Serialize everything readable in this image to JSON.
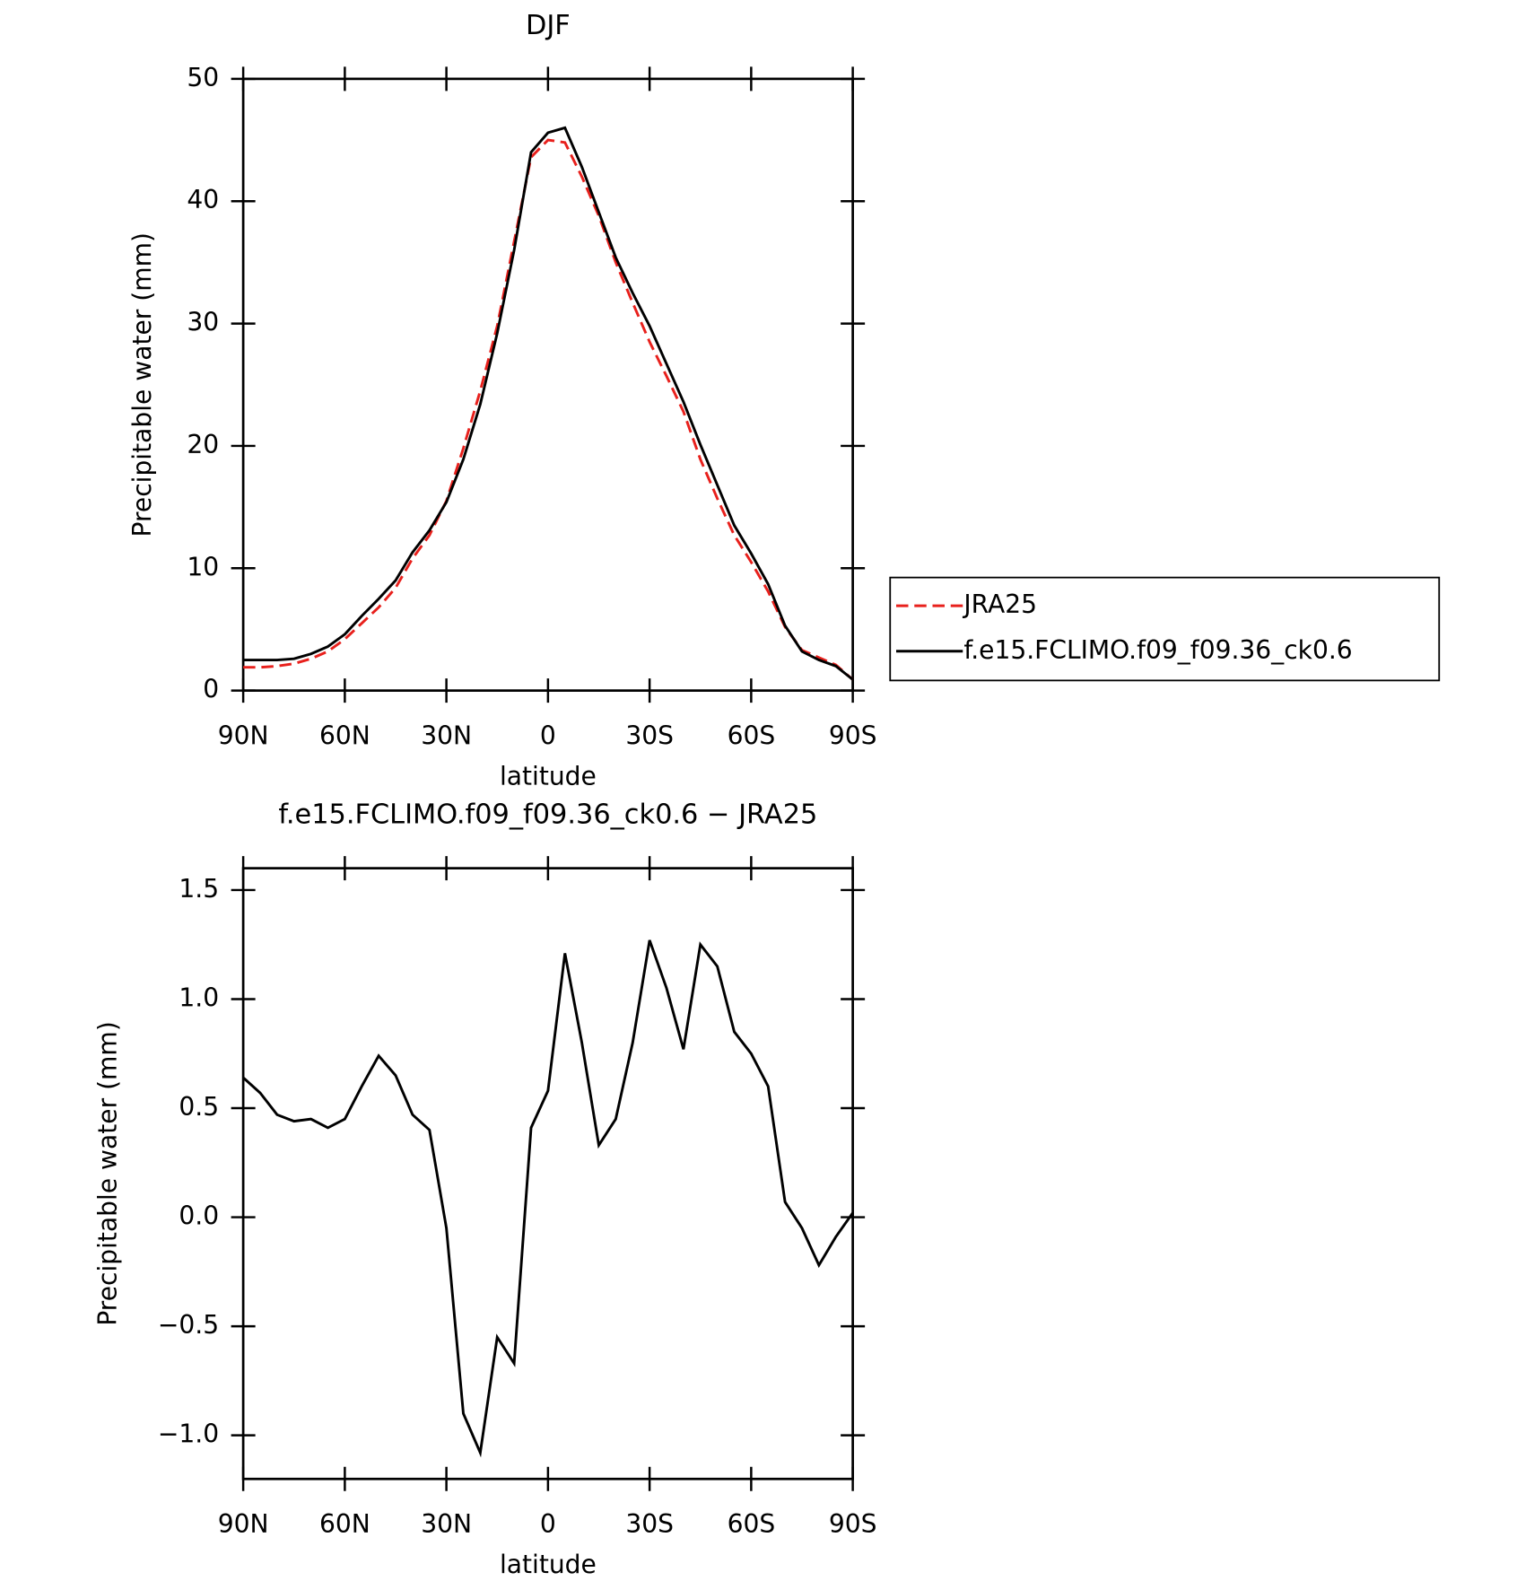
{
  "chart_data": [
    {
      "type": "line",
      "title": "DJF",
      "xlabel": "latitude",
      "ylabel": "Precipitable water (mm)",
      "x": [
        90,
        85,
        80,
        75,
        70,
        65,
        60,
        55,
        50,
        45,
        40,
        35,
        30,
        25,
        20,
        15,
        10,
        5,
        0,
        -5,
        -10,
        -15,
        -20,
        -25,
        -30,
        -35,
        -40,
        -45,
        -50,
        -55,
        -60,
        -65,
        -70,
        -75,
        -80,
        -85,
        -90
      ],
      "series": [
        {
          "name": "JRA25",
          "color": "#e8201c",
          "style": "dashed",
          "values": [
            1.9,
            1.9,
            2.0,
            2.2,
            2.6,
            3.2,
            4.2,
            5.5,
            6.8,
            8.4,
            10.8,
            12.7,
            15.5,
            19.8,
            24.5,
            29.8,
            36.7,
            43.6,
            45.0,
            44.8,
            42.0,
            38.8,
            35.0,
            31.7,
            28.5,
            25.7,
            22.8,
            18.9,
            15.7,
            12.7,
            10.5,
            8.1,
            5.2,
            3.3,
            2.7,
            2.1,
            0.9
          ]
        },
        {
          "name": "f.e15.FCLIMO.f09_f09.36_ck0.6",
          "color": "#000000",
          "style": "solid",
          "values": [
            2.5,
            2.5,
            2.5,
            2.6,
            3.0,
            3.6,
            4.6,
            6.1,
            7.5,
            9.0,
            11.3,
            13.1,
            15.4,
            18.9,
            23.4,
            29.2,
            36,
            44,
            45.6,
            46.0,
            42.8,
            39.1,
            35.4,
            32.5,
            29.8,
            26.7,
            23.6,
            20.1,
            16.8,
            13.5,
            11.2,
            8.7,
            5.3,
            3.2,
            2.5,
            2.0,
            0.9
          ]
        }
      ],
      "xlim": [
        90,
        -90
      ],
      "xticks": [
        {
          "value": 90,
          "label": "90N"
        },
        {
          "value": 60,
          "label": "60N"
        },
        {
          "value": 30,
          "label": "30N"
        },
        0,
        {
          "value": -30,
          "label": "30S"
        },
        {
          "value": -60,
          "label": "60S"
        },
        {
          "value": -90,
          "label": "90S"
        }
      ],
      "ylim": [
        0,
        50
      ],
      "yticks": [
        0,
        10,
        20,
        30,
        40,
        50
      ],
      "legend": "outside-right"
    },
    {
      "type": "line",
      "title": "f.e15.FCLIMO.f09_f09.36_ck0.6 − JRA25",
      "xlabel": "latitude",
      "ylabel": "Precipitable water (mm)",
      "x": [
        90,
        85,
        80,
        75,
        70,
        65,
        60,
        55,
        50,
        45,
        40,
        35,
        30,
        25,
        20,
        15,
        10,
        5,
        0,
        -5,
        -10,
        -15,
        -20,
        -25,
        -30,
        -35,
        -40,
        -45,
        -50,
        -55,
        -60,
        -65,
        -70,
        -75,
        -80,
        -85,
        -90
      ],
      "color": "#000000",
      "values": [
        0.64,
        0.57,
        0.47,
        0.44,
        0.45,
        0.41,
        0.45,
        0.6,
        0.74,
        0.65,
        0.47,
        0.4,
        -0.05,
        -0.9,
        -1.08,
        -0.55,
        -0.67,
        0.41,
        0.58,
        1.21,
        0.8,
        0.33,
        0.45,
        0.8,
        1.27,
        1.05,
        0.77,
        1.25,
        1.15,
        0.85,
        0.75,
        0.6,
        0.07,
        -0.05,
        -0.22,
        -0.09,
        0.02
      ],
      "xlim": [
        90,
        -90
      ],
      "xticks": [
        {
          "value": 90,
          "label": "90N"
        },
        {
          "value": 60,
          "label": "60N"
        },
        {
          "value": 30,
          "label": "30N"
        },
        0,
        {
          "value": -30,
          "label": "30S"
        },
        {
          "value": -60,
          "label": "60S"
        },
        {
          "value": -90,
          "label": "90S"
        }
      ],
      "ylim": [
        -1.2,
        1.6
      ],
      "yticks": [
        {
          "value": -1,
          "label": "−1.0"
        },
        {
          "value": -0.5,
          "label": "−0.5"
        },
        {
          "value": 0,
          "label": "0.0"
        },
        0.5,
        {
          "value": 1,
          "label": "1.0"
        },
        1.5
      ]
    }
  ]
}
